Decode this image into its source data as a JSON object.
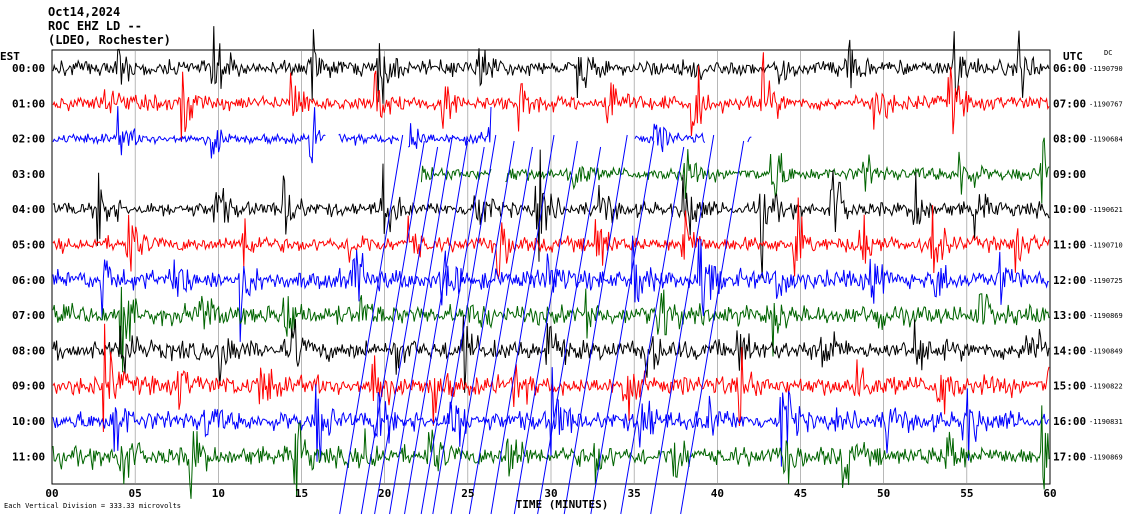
{
  "header": {
    "date": "Oct14,2024",
    "station": "ROC EHZ LD --",
    "network": "(LDEO, Rochester)"
  },
  "chart_data": {
    "type": "line",
    "title": "ROC EHZ LD --",
    "xlabel": "TIME (MINUTES)",
    "xlim": [
      0,
      60
    ],
    "x_ticks": [
      "00",
      "05",
      "10",
      "15",
      "20",
      "25",
      "30",
      "35",
      "40",
      "45",
      "50",
      "55",
      "60"
    ],
    "left_axis_label": "EST",
    "right_axis_label": "UTC",
    "dc_label": "DC",
    "footnote": "Each Vertical Division = 333.33 microvolts",
    "trace_colors": [
      "#000000",
      "#ff0000",
      "#0000ff",
      "#006400"
    ],
    "rows": [
      {
        "est": "00:00",
        "utc": "06:00",
        "dc": "-1190790"
      },
      {
        "est": "01:00",
        "utc": "07:00",
        "dc": "-1190767"
      },
      {
        "est": "02:00",
        "utc": "08:00",
        "dc": "-1190684"
      },
      {
        "est": "03:00",
        "utc": "09:00",
        "dc": ""
      },
      {
        "est": "04:00",
        "utc": "10:00",
        "dc": "-1190621"
      },
      {
        "est": "05:00",
        "utc": "11:00",
        "dc": "-1190710"
      },
      {
        "est": "06:00",
        "utc": "12:00",
        "dc": "-1190725"
      },
      {
        "est": "07:00",
        "utc": "13:00",
        "dc": "-1190869"
      },
      {
        "est": "08:00",
        "utc": "14:00",
        "dc": "-1190849"
      },
      {
        "est": "09:00",
        "utc": "15:00",
        "dc": "-1190822"
      },
      {
        "est": "10:00",
        "utc": "16:00",
        "dc": "-1190831"
      },
      {
        "est": "11:00",
        "utc": "17:00",
        "dc": "-1190869"
      }
    ],
    "grid": true
  }
}
